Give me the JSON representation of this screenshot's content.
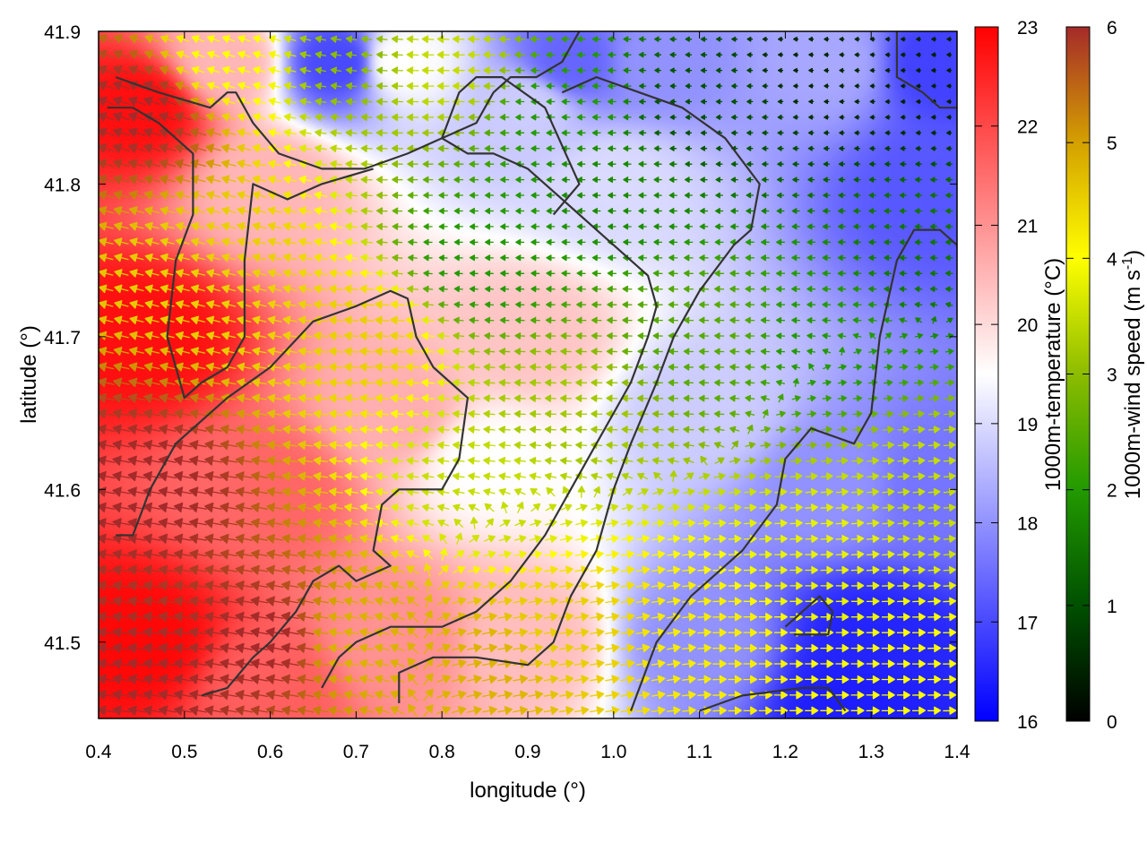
{
  "chart_data": {
    "type": "heatmap",
    "subtype": "wind-vector field over temperature map with contours",
    "xlabel": "longitude (°)",
    "ylabel": "latitude (°)",
    "xlim": [
      0.4,
      1.4
    ],
    "ylim": [
      41.45,
      41.9
    ],
    "x_ticks": [
      "0.4",
      "0.5",
      "0.6",
      "0.7",
      "0.8",
      "0.9",
      "1.0",
      "1.1",
      "1.2",
      "1.3",
      "1.4"
    ],
    "y_ticks": [
      "41.5",
      "41.6",
      "41.7",
      "41.8",
      "41.9"
    ],
    "colorbars": [
      {
        "label": "1000m-temperature (°C)",
        "min": 16,
        "max": 23,
        "ticks": [
          "16",
          "17",
          "18",
          "19",
          "20",
          "21",
          "22",
          "23"
        ],
        "colors": [
          "#0000ff",
          "#ffffff",
          "#ff0000"
        ]
      },
      {
        "label_main": "1000m-wind speed (m s",
        "label_sup": "-1",
        "label_end": ")",
        "min": 0,
        "max": 6,
        "ticks": [
          "0",
          "1",
          "2",
          "3",
          "4",
          "5",
          "6"
        ],
        "colors": [
          "#000000",
          "#005000",
          "#229a00",
          "#8cbc00",
          "#ffff00",
          "#d4a000",
          "#a52a2a"
        ]
      }
    ],
    "temperature_field_anchors": [
      {
        "x": 0.45,
        "y": 41.85,
        "t": 22.8
      },
      {
        "x": 0.45,
        "y": 41.7,
        "t": 22.8
      },
      {
        "x": 0.45,
        "y": 41.5,
        "t": 22.9
      },
      {
        "x": 0.55,
        "y": 41.88,
        "t": 20.5
      },
      {
        "x": 0.6,
        "y": 41.8,
        "t": 20.5
      },
      {
        "x": 0.6,
        "y": 41.6,
        "t": 21.6
      },
      {
        "x": 0.6,
        "y": 41.47,
        "t": 21.7
      },
      {
        "x": 0.75,
        "y": 41.88,
        "t": 19.5
      },
      {
        "x": 0.75,
        "y": 41.65,
        "t": 20.6
      },
      {
        "x": 0.75,
        "y": 41.5,
        "t": 21.0
      },
      {
        "x": 0.9,
        "y": 41.85,
        "t": 18.8
      },
      {
        "x": 0.9,
        "y": 41.7,
        "t": 20.3
      },
      {
        "x": 0.9,
        "y": 41.5,
        "t": 20.4
      },
      {
        "x": 1.0,
        "y": 41.8,
        "t": 19.0
      },
      {
        "x": 1.05,
        "y": 41.88,
        "t": 18.0
      },
      {
        "x": 1.1,
        "y": 41.65,
        "t": 18.8
      },
      {
        "x": 1.1,
        "y": 41.5,
        "t": 18.0
      },
      {
        "x": 1.25,
        "y": 41.88,
        "t": 18.3
      },
      {
        "x": 1.25,
        "y": 41.6,
        "t": 18.0
      },
      {
        "x": 1.3,
        "y": 41.5,
        "t": 16.5
      },
      {
        "x": 1.38,
        "y": 41.8,
        "t": 17.2
      },
      {
        "x": 1.38,
        "y": 41.6,
        "t": 17.6
      },
      {
        "x": 0.95,
        "y": 41.88,
        "t": 17.4
      },
      {
        "x": 0.68,
        "y": 41.88,
        "t": 17.0
      },
      {
        "x": 1.38,
        "y": 41.88,
        "t": 16.9
      },
      {
        "x": 1.28,
        "y": 41.46,
        "t": 16.4
      },
      {
        "x": 0.85,
        "y": 41.62,
        "t": 19.5
      }
    ],
    "wind_speed_anchors": [
      {
        "x": 0.45,
        "y": 41.85,
        "s": 6.0
      },
      {
        "x": 0.45,
        "y": 41.6,
        "s": 6.0
      },
      {
        "x": 0.45,
        "y": 41.47,
        "s": 6.0
      },
      {
        "x": 0.55,
        "y": 41.88,
        "s": 4.0
      },
      {
        "x": 0.55,
        "y": 41.75,
        "s": 4.5
      },
      {
        "x": 0.6,
        "y": 41.5,
        "s": 6.0
      },
      {
        "x": 0.7,
        "y": 41.88,
        "s": 3.0
      },
      {
        "x": 0.7,
        "y": 41.7,
        "s": 4.5
      },
      {
        "x": 0.7,
        "y": 41.5,
        "s": 4.8
      },
      {
        "x": 0.8,
        "y": 41.88,
        "s": 3.5
      },
      {
        "x": 0.85,
        "y": 41.75,
        "s": 2.0
      },
      {
        "x": 0.85,
        "y": 41.6,
        "s": 3.5
      },
      {
        "x": 0.85,
        "y": 41.48,
        "s": 4.8
      },
      {
        "x": 0.95,
        "y": 41.85,
        "s": 2.0
      },
      {
        "x": 0.95,
        "y": 41.65,
        "s": 3.2
      },
      {
        "x": 0.95,
        "y": 41.5,
        "s": 4.5
      },
      {
        "x": 1.1,
        "y": 41.85,
        "s": 1.0
      },
      {
        "x": 1.1,
        "y": 41.7,
        "s": 2.5
      },
      {
        "x": 1.1,
        "y": 41.5,
        "s": 4.2
      },
      {
        "x": 1.25,
        "y": 41.88,
        "s": 0.5
      },
      {
        "x": 1.25,
        "y": 41.7,
        "s": 2.0
      },
      {
        "x": 1.25,
        "y": 41.55,
        "s": 3.8
      },
      {
        "x": 1.38,
        "y": 41.88,
        "s": 0.4
      },
      {
        "x": 1.38,
        "y": 41.75,
        "s": 1.5
      },
      {
        "x": 1.38,
        "y": 41.6,
        "s": 3.5
      },
      {
        "x": 1.38,
        "y": 41.48,
        "s": 4.0
      },
      {
        "x": 1.0,
        "y": 41.8,
        "s": 1.8
      }
    ],
    "wind_direction_anchors": [
      {
        "x": 0.4,
        "y": 41.9,
        "deg": 160
      },
      {
        "x": 0.55,
        "y": 41.75,
        "deg": 165
      },
      {
        "x": 0.55,
        "y": 41.5,
        "deg": 170
      },
      {
        "x": 0.75,
        "y": 41.7,
        "deg": 175
      },
      {
        "x": 0.85,
        "y": 41.8,
        "deg": 180
      },
      {
        "x": 1.0,
        "y": 41.7,
        "deg": 178
      },
      {
        "x": 1.0,
        "y": 41.5,
        "deg": 10
      },
      {
        "x": 1.2,
        "y": 41.8,
        "deg": 180
      },
      {
        "x": 1.2,
        "y": 41.5,
        "deg": 0
      },
      {
        "x": 1.35,
        "y": 41.6,
        "deg": 5
      }
    ],
    "contours": [
      [
        [
          0.42,
          41.87
        ],
        [
          0.47,
          41.86
        ],
        [
          0.5,
          41.855
        ],
        [
          0.53,
          41.85
        ],
        [
          0.55,
          41.86
        ],
        [
          0.56,
          41.86
        ],
        [
          0.58,
          41.84
        ],
        [
          0.61,
          41.82
        ],
        [
          0.66,
          41.81
        ],
        [
          0.71,
          41.81
        ],
        [
          0.76,
          41.82
        ],
        [
          0.8,
          41.83
        ],
        [
          0.84,
          41.84
        ],
        [
          0.86,
          41.86
        ],
        [
          0.88,
          41.87
        ],
        [
          0.91,
          41.87
        ],
        [
          0.94,
          41.88
        ],
        [
          0.96,
          41.9
        ]
      ],
      [
        [
          0.41,
          41.85
        ],
        [
          0.44,
          41.85
        ],
        [
          0.47,
          41.84
        ],
        [
          0.51,
          41.82
        ],
        [
          0.51,
          41.78
        ],
        [
          0.49,
          41.75
        ],
        [
          0.48,
          41.7
        ],
        [
          0.5,
          41.66
        ],
        [
          0.52,
          41.67
        ],
        [
          0.55,
          41.68
        ],
        [
          0.57,
          41.7
        ],
        [
          0.57,
          41.75
        ],
        [
          0.58,
          41.8
        ],
        [
          0.62,
          41.79
        ],
        [
          0.66,
          41.8
        ],
        [
          0.72,
          41.81
        ]
      ],
      [
        [
          0.42,
          41.57
        ],
        [
          0.44,
          41.57
        ],
        [
          0.46,
          41.6
        ],
        [
          0.49,
          41.63
        ],
        [
          0.55,
          41.66
        ],
        [
          0.6,
          41.68
        ],
        [
          0.65,
          41.71
        ],
        [
          0.7,
          41.72
        ],
        [
          0.74,
          41.73
        ],
        [
          0.76,
          41.725
        ],
        [
          0.77,
          41.7
        ],
        [
          0.79,
          41.68
        ],
        [
          0.83,
          41.66
        ],
        [
          0.82,
          41.62
        ],
        [
          0.8,
          41.6
        ],
        [
          0.75,
          41.6
        ],
        [
          0.73,
          41.59
        ],
        [
          0.72,
          41.56
        ],
        [
          0.74,
          41.55
        ],
        [
          0.7,
          41.54
        ],
        [
          0.68,
          41.55
        ],
        [
          0.65,
          41.54
        ],
        [
          0.63,
          41.52
        ],
        [
          0.6,
          41.5
        ],
        [
          0.58,
          41.49
        ],
        [
          0.55,
          41.47
        ],
        [
          0.52,
          41.465
        ]
      ],
      [
        [
          0.66,
          41.47
        ],
        [
          0.68,
          41.49
        ],
        [
          0.7,
          41.5
        ],
        [
          0.74,
          41.51
        ],
        [
          0.8,
          41.51
        ],
        [
          0.84,
          41.52
        ],
        [
          0.88,
          41.54
        ],
        [
          0.92,
          41.57
        ],
        [
          0.95,
          41.6
        ],
        [
          0.98,
          41.63
        ],
        [
          1.02,
          41.67
        ],
        [
          1.04,
          41.7
        ],
        [
          1.05,
          41.72
        ],
        [
          1.04,
          41.74
        ],
        [
          1.0,
          41.76
        ],
        [
          0.96,
          41.78
        ],
        [
          0.92,
          41.8
        ],
        [
          0.9,
          41.81
        ],
        [
          0.86,
          41.82
        ],
        [
          0.83,
          41.82
        ],
        [
          0.8,
          41.83
        ],
        [
          0.82,
          41.86
        ],
        [
          0.84,
          41.87
        ],
        [
          0.87,
          41.87
        ],
        [
          0.92,
          41.85
        ],
        [
          0.96,
          41.8
        ],
        [
          0.93,
          41.78
        ]
      ],
      [
        [
          0.75,
          41.46
        ],
        [
          0.75,
          41.48
        ],
        [
          0.79,
          41.49
        ],
        [
          0.84,
          41.49
        ],
        [
          0.9,
          41.485
        ],
        [
          0.93,
          41.5
        ],
        [
          0.95,
          41.53
        ],
        [
          0.98,
          41.56
        ],
        [
          1.0,
          41.6
        ],
        [
          1.02,
          41.63
        ],
        [
          1.05,
          41.67
        ],
        [
          1.07,
          41.7
        ],
        [
          1.1,
          41.73
        ],
        [
          1.14,
          41.76
        ],
        [
          1.16,
          41.77
        ],
        [
          1.17,
          41.8
        ],
        [
          1.13,
          41.83
        ],
        [
          1.08,
          41.85
        ],
        [
          1.03,
          41.86
        ],
        [
          0.98,
          41.87
        ],
        [
          0.94,
          41.86
        ]
      ],
      [
        [
          1.02,
          41.455
        ],
        [
          1.05,
          41.5
        ],
        [
          1.09,
          41.53
        ],
        [
          1.15,
          41.56
        ],
        [
          1.19,
          41.59
        ],
        [
          1.2,
          41.62
        ],
        [
          1.23,
          41.64
        ],
        [
          1.28,
          41.63
        ],
        [
          1.3,
          41.65
        ],
        [
          1.31,
          41.7
        ],
        [
          1.33,
          41.75
        ],
        [
          1.35,
          41.77
        ],
        [
          1.38,
          41.77
        ],
        [
          1.4,
          41.76
        ]
      ],
      [
        [
          1.1,
          41.455
        ],
        [
          1.15,
          41.465
        ],
        [
          1.22,
          41.47
        ],
        [
          1.25,
          41.47
        ],
        [
          1.27,
          41.455
        ]
      ],
      [
        [
          1.2,
          41.51
        ],
        [
          1.24,
          41.53
        ],
        [
          1.255,
          41.52
        ],
        [
          1.25,
          41.505
        ],
        [
          1.21,
          41.505
        ]
      ],
      [
        [
          1.33,
          41.9
        ],
        [
          1.33,
          41.87
        ],
        [
          1.36,
          41.86
        ],
        [
          1.38,
          41.85
        ],
        [
          1.4,
          41.85
        ]
      ]
    ]
  }
}
